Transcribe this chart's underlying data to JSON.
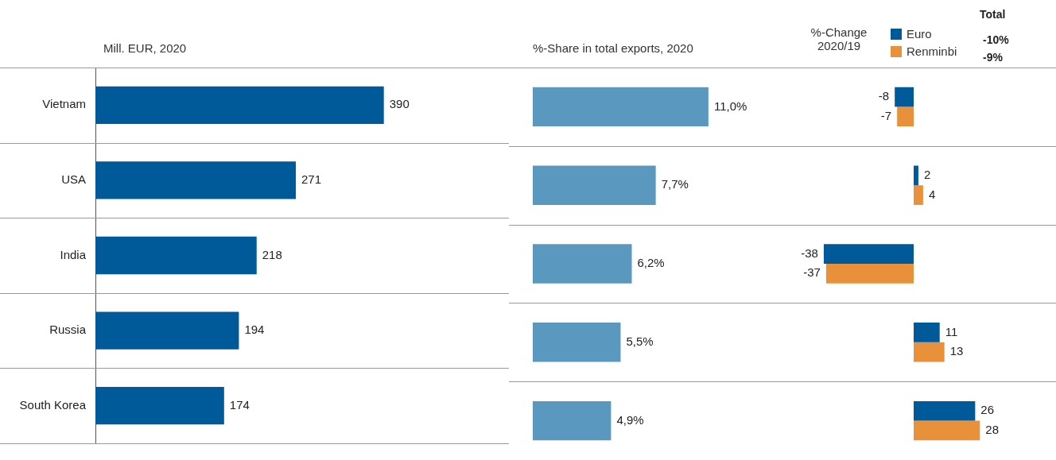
{
  "chart_data": [
    {
      "type": "bar",
      "orientation": "horizontal",
      "title": "Mill. EUR, 2020",
      "categories": [
        "Vietnam",
        "USA",
        "India",
        "Russia",
        "South Korea"
      ],
      "values": [
        390,
        271,
        218,
        194,
        174
      ],
      "color": "#005a9a",
      "data_labels": true,
      "grid": "y"
    },
    {
      "type": "bar",
      "orientation": "horizontal",
      "title": "%-Share in total exports, 2020",
      "categories": [
        null,
        null,
        null,
        null,
        null
      ],
      "values": [
        11.0,
        7.7,
        6.2,
        5.5,
        4.9
      ],
      "value_labels": [
        "11,0%",
        "7,7%",
        "6,2%",
        "5,5%",
        "4,9%"
      ],
      "color": "#5b98c0",
      "grid": "y",
      "tick_labels": false
    },
    {
      "type": "bar",
      "orientation": "horizontal",
      "title": "%-Change 2020/19",
      "categories": [
        null,
        null,
        null,
        null,
        null
      ],
      "series": [
        {
          "name": "Euro",
          "color": "#005a9a",
          "values": [
            -8,
            2,
            -38,
            11,
            26
          ]
        },
        {
          "name": "Renminbi",
          "color": "#e8913a",
          "values": [
            -7,
            4,
            -37,
            13,
            28
          ]
        }
      ],
      "data_labels": true,
      "legend": "top right",
      "grid": "y",
      "tick_labels": false,
      "annotations": [
        "Total",
        "-10%",
        "-9%"
      ]
    }
  ]
}
